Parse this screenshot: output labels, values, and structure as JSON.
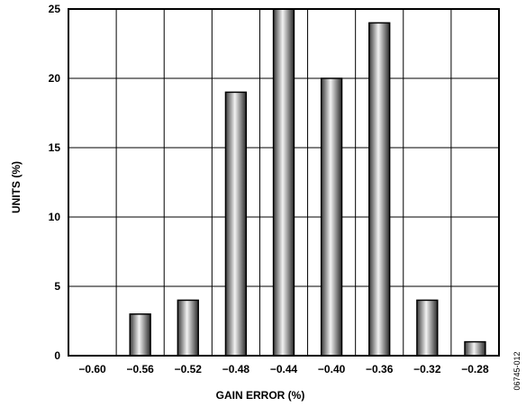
{
  "chart_data": {
    "type": "bar",
    "categories": [
      "−0.60",
      "−0.56",
      "−0.52",
      "−0.48",
      "−0.44",
      "−0.40",
      "−0.36",
      "−0.32",
      "−0.28"
    ],
    "values": [
      0,
      3,
      4,
      19,
      25,
      20,
      24,
      4,
      1
    ],
    "xlabel": "GAIN ERROR (%)",
    "ylabel": "UNITS (%)",
    "ylim": [
      0,
      25
    ],
    "yticks": [
      "0",
      "5",
      "10",
      "15",
      "20",
      "25"
    ],
    "grid": true,
    "bar_gradient_colors": [
      "#3a3a3a",
      "#f2f2f2",
      "#2a2a2a"
    ]
  },
  "figure_id": "06745-012"
}
